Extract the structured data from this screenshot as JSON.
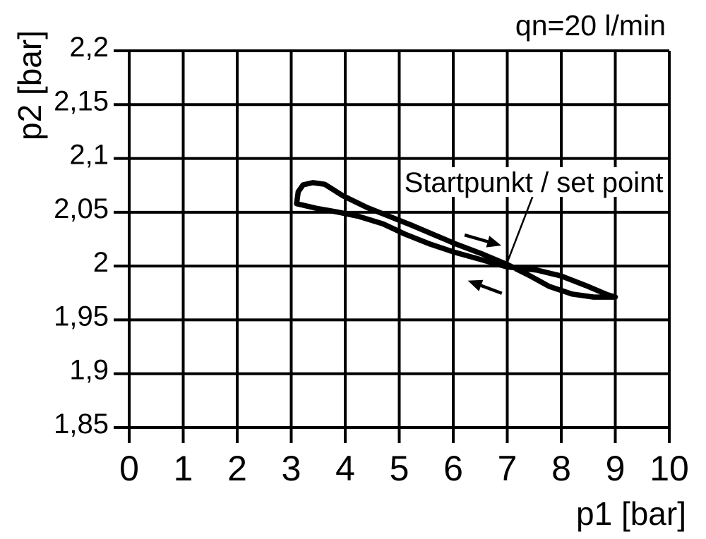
{
  "page": {
    "background": "#ffffff"
  },
  "colors": {
    "ink": "#000000",
    "grid": "#000000",
    "curve": "#000000"
  },
  "chart_data": {
    "type": "line",
    "title": "",
    "flow_label": "qn=20 l/min",
    "xlabel": "p1 [bar]",
    "ylabel": "p2 [bar]",
    "xlim": [
      0,
      10
    ],
    "ylim": [
      1.85,
      2.2
    ],
    "grid": true,
    "x_ticks": [
      0,
      1,
      2,
      3,
      4,
      5,
      6,
      7,
      8,
      9,
      10
    ],
    "x_tick_labels": [
      "0",
      "1",
      "2",
      "3",
      "4",
      "5",
      "6",
      "7",
      "8",
      "9",
      "10"
    ],
    "y_ticks": [
      2.2,
      2.15,
      2.1,
      2.05,
      2.0,
      1.95,
      1.9,
      1.85
    ],
    "y_tick_labels": [
      "2,2",
      "2,15",
      "2,1",
      "2,05",
      "2",
      "1,95",
      "1,9",
      "1,85"
    ],
    "series": [
      {
        "name": "hysteresis-decreasing-p1-branch",
        "points": [
          [
            3.1,
            2.058
          ],
          [
            3.13,
            2.069
          ],
          [
            3.22,
            2.0755
          ],
          [
            3.4,
            2.0775
          ],
          [
            3.62,
            2.076
          ],
          [
            3.95,
            2.0655
          ],
          [
            4.4,
            2.0545
          ],
          [
            4.8,
            2.0465
          ],
          [
            5.25,
            2.0375
          ],
          [
            5.65,
            2.029
          ],
          [
            6.05,
            2.0205
          ],
          [
            6.55,
            2.011
          ],
          [
            7.0,
            2.0015
          ],
          [
            7.4,
            1.9915
          ],
          [
            7.78,
            1.981
          ],
          [
            8.2,
            1.974
          ],
          [
            8.6,
            1.9712
          ],
          [
            9.0,
            1.9712
          ]
        ]
      },
      {
        "name": "hysteresis-increasing-p1-branch",
        "points": [
          [
            9.0,
            1.9712
          ],
          [
            8.85,
            1.9735
          ],
          [
            8.45,
            1.982
          ],
          [
            8.0,
            1.9908
          ],
          [
            7.55,
            1.9962
          ],
          [
            7.0,
            1.9992
          ],
          [
            6.5,
            2.0062
          ],
          [
            6.0,
            2.0132
          ],
          [
            5.55,
            2.0208
          ],
          [
            5.1,
            2.0298
          ],
          [
            4.7,
            2.0392
          ],
          [
            4.25,
            2.0462
          ],
          [
            3.85,
            2.0503
          ],
          [
            3.48,
            2.0535
          ],
          [
            3.1,
            2.058
          ]
        ]
      }
    ],
    "annotations": {
      "set_point_label": "Startpunkt / set point",
      "set_point": [
        7.0,
        2.0
      ],
      "leader": {
        "from": [
          7.48,
          2.066
        ],
        "to": [
          7.01,
          2.0047
        ]
      },
      "arrows": [
        {
          "name": "forward-direction-arrow",
          "tail": [
            6.21,
            2.0289
          ],
          "tip": [
            6.89,
            2.0191
          ]
        },
        {
          "name": "return-direction-arrow",
          "tail": [
            6.9,
            1.9747
          ],
          "tip": [
            6.27,
            1.9865
          ]
        }
      ]
    }
  }
}
